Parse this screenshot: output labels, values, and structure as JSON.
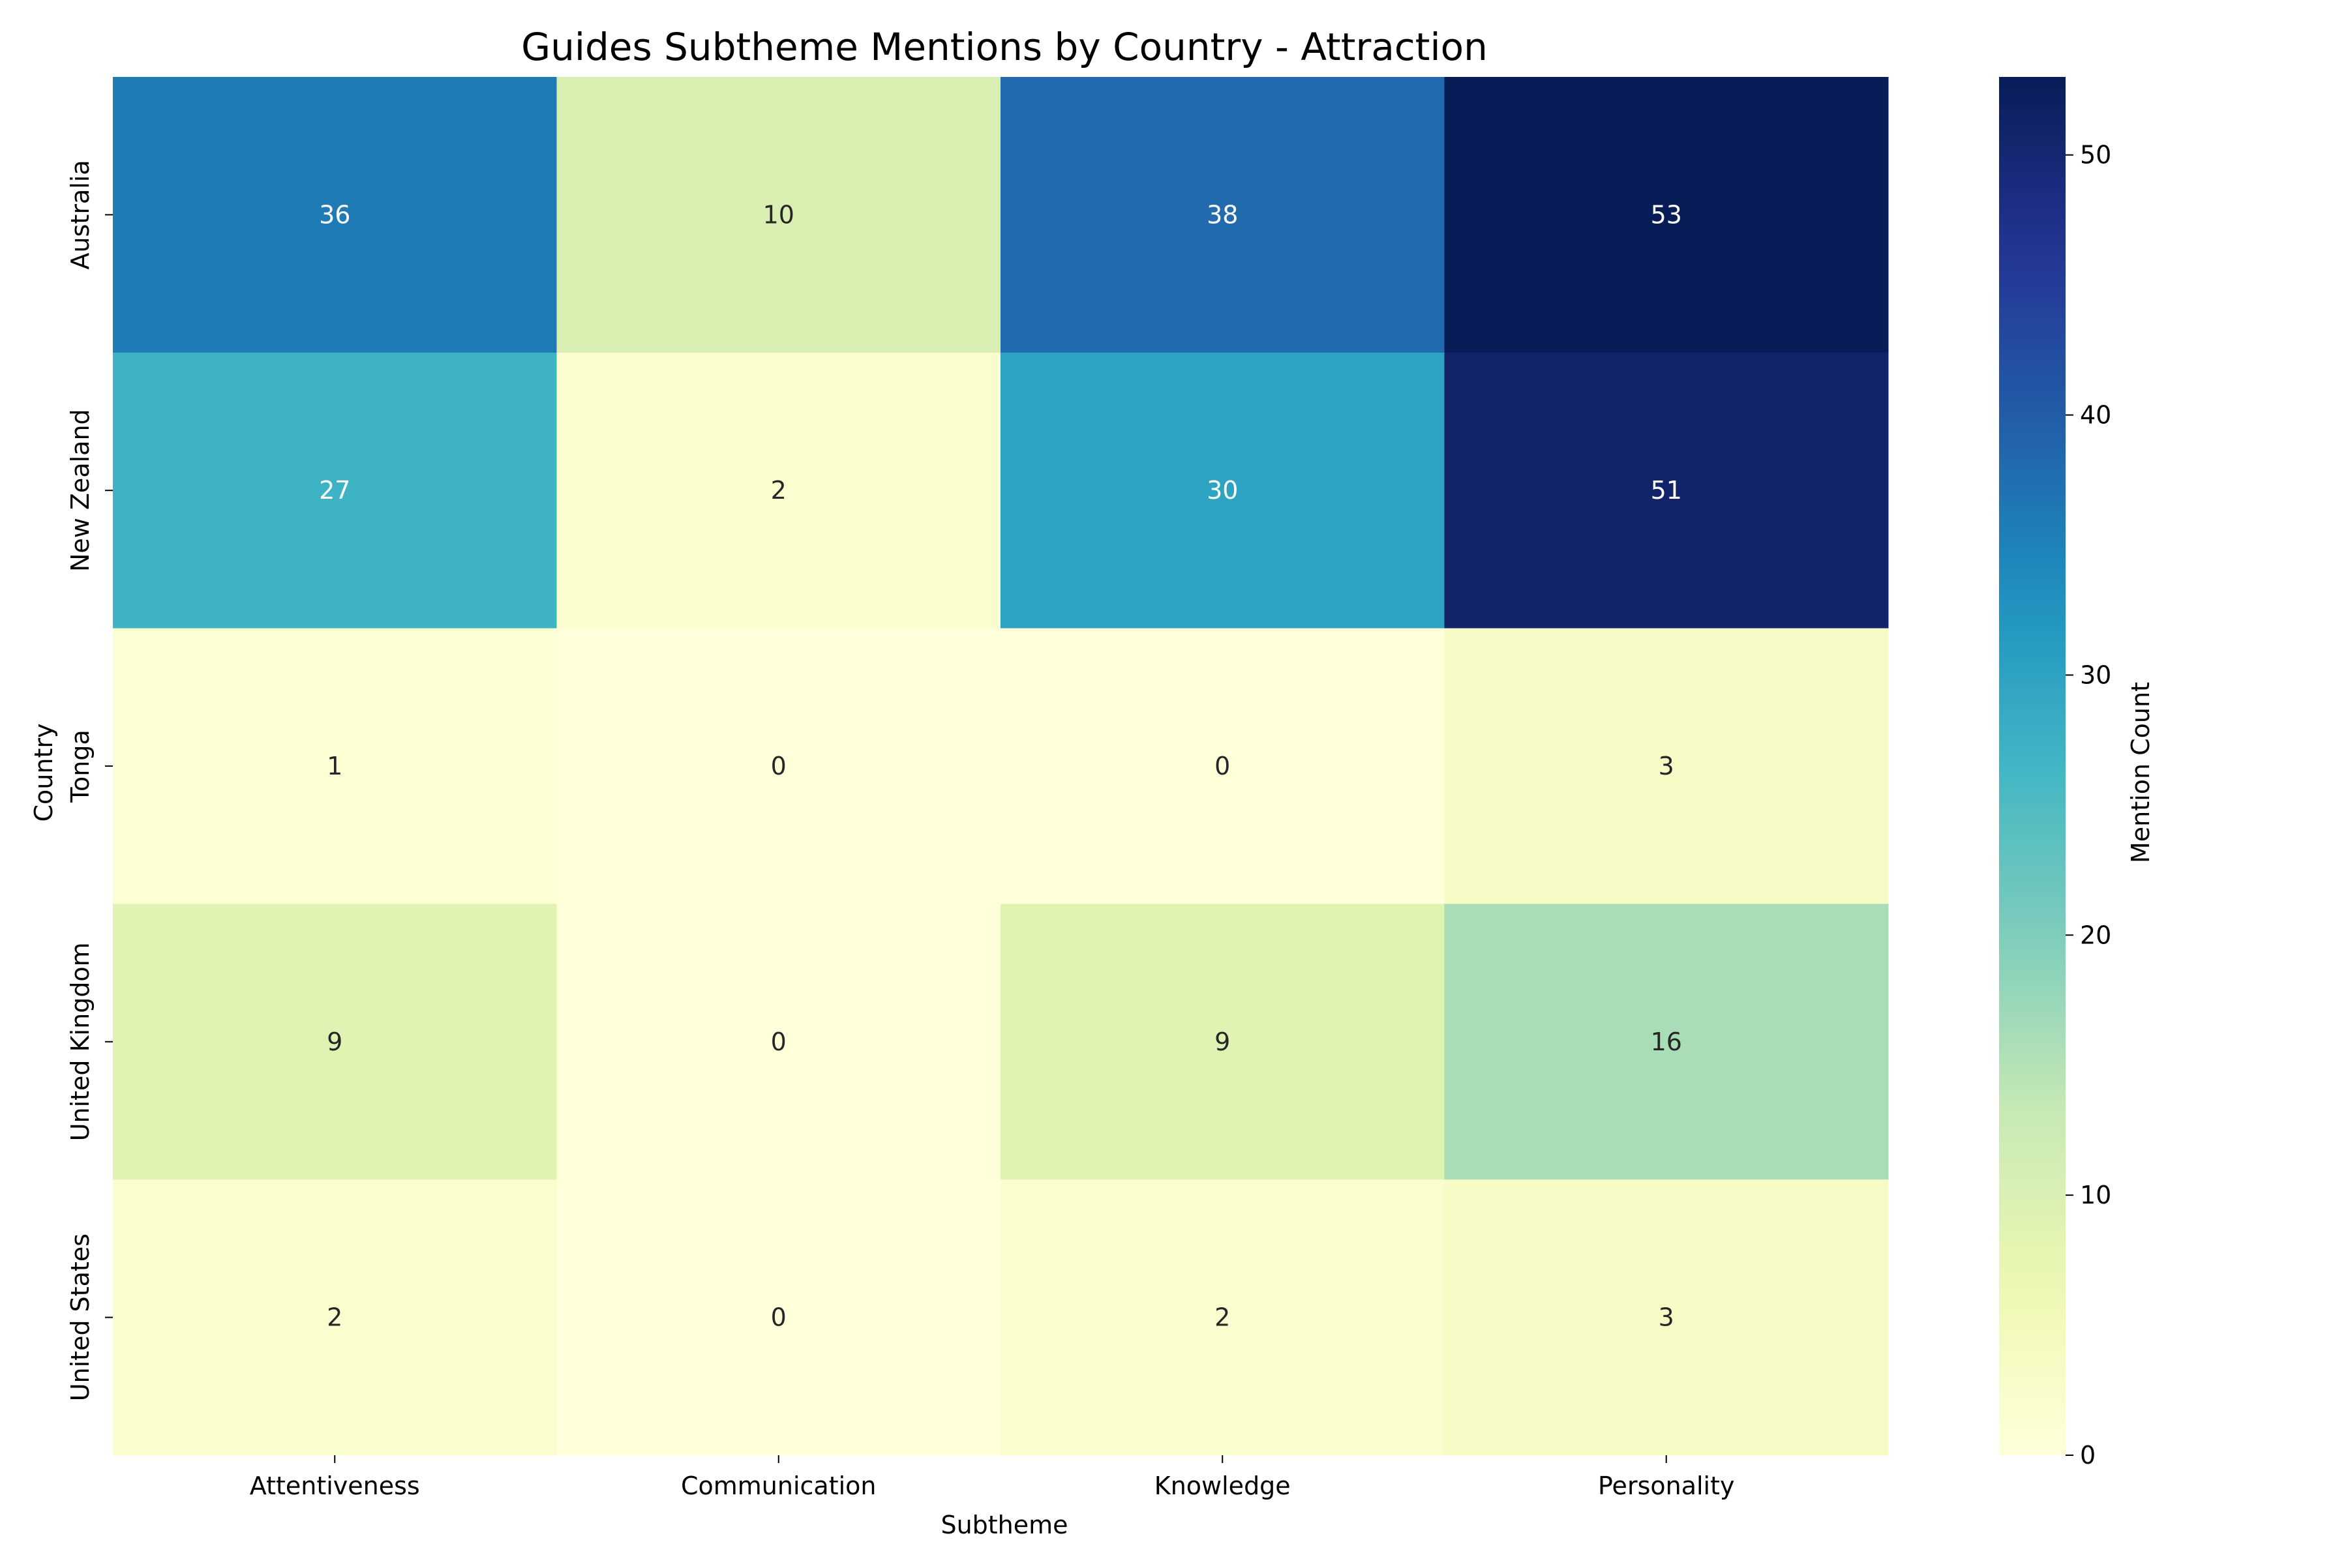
{
  "chart_data": {
    "type": "heatmap",
    "title": "Guides Subtheme Mentions by Country - Attraction",
    "xlabel": "Subtheme",
    "ylabel": "Country",
    "x_categories": [
      "Attentiveness",
      "Communication",
      "Knowledge",
      "Personality"
    ],
    "y_categories": [
      "Australia",
      "New Zealand",
      "Tonga",
      "United Kingdom",
      "United States"
    ],
    "values": [
      [
        36,
        10,
        38,
        53
      ],
      [
        27,
        2,
        30,
        51
      ],
      [
        1,
        0,
        0,
        3
      ],
      [
        9,
        0,
        9,
        16
      ],
      [
        2,
        0,
        2,
        3
      ]
    ],
    "colorbar": {
      "label": "Mention Count",
      "range": [
        0,
        53
      ],
      "ticks": [
        0,
        10,
        20,
        30,
        40,
        50
      ],
      "colormap": "YlGnBu"
    }
  }
}
